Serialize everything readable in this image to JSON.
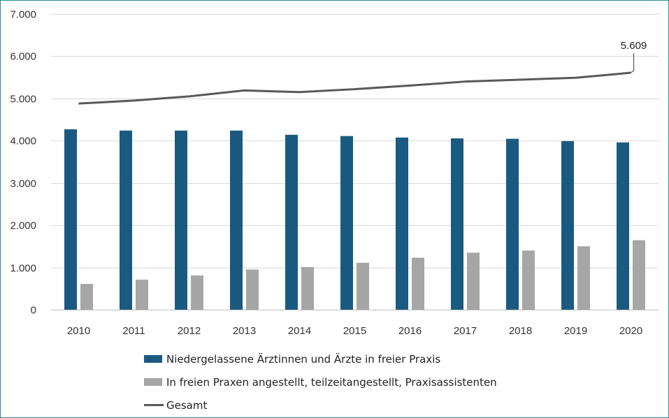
{
  "chart_data": {
    "type": "bar",
    "categories": [
      "2010",
      "2011",
      "2012",
      "2013",
      "2014",
      "2015",
      "2016",
      "2017",
      "2018",
      "2019",
      "2020"
    ],
    "series": [
      {
        "name": "Niedergelassene Ärztinnen und Ärzte in freier Praxis",
        "type": "bar",
        "color": "#1b5a80",
        "values": [
          4270,
          4240,
          4240,
          4240,
          4140,
          4110,
          4075,
          4055,
          4045,
          3990,
          3960
        ]
      },
      {
        "name": "In freien Praxen angestellt, teilzeitangestellt, Praxisassistenten",
        "type": "bar",
        "color": "#a6a6a6",
        "values": [
          610,
          710,
          810,
          950,
          1010,
          1110,
          1230,
          1350,
          1400,
          1500,
          1645
        ]
      },
      {
        "name": "Gesamt",
        "type": "line",
        "color": "#595959",
        "values": [
          4880,
          4950,
          5050,
          5190,
          5150,
          5220,
          5305,
          5400,
          5445,
          5490,
          5609
        ]
      }
    ],
    "annotation": {
      "series": "Gesamt",
      "category": "2020",
      "label": "5.609"
    },
    "ylim": [
      0,
      7000
    ],
    "yticks": [
      "0",
      "1.000",
      "2.000",
      "3.000",
      "4.000",
      "5.000",
      "6.000",
      "7.000"
    ],
    "grid": true,
    "legend_position": "bottom"
  }
}
